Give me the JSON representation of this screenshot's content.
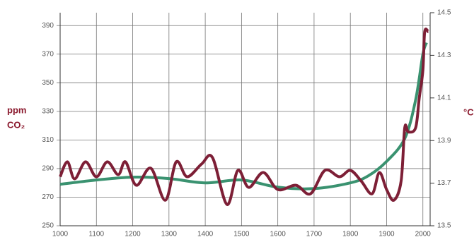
{
  "chart_data": {
    "type": "line",
    "y_label": "ppm",
    "y_label_2": "CO₂",
    "y2_label": "°C",
    "xlim": [
      1000,
      2020
    ],
    "xticks": [
      1000,
      1100,
      1200,
      1300,
      1400,
      1500,
      1600,
      1700,
      1800,
      1900,
      2000
    ],
    "ylim": [
      250,
      399
    ],
    "yticks": [
      250,
      270,
      290,
      310,
      330,
      350,
      370,
      390
    ],
    "y2lim": [
      13.5,
      14.5
    ],
    "y2ticks": [
      13.5,
      13.7,
      13.9,
      14.1,
      14.3,
      14.5
    ],
    "grid": true,
    "series": [
      {
        "color": "#3a9270",
        "x": [
          1000,
          1100,
          1200,
          1300,
          1400,
          1500,
          1600,
          1700,
          1800,
          1850,
          1900,
          1950,
          1980,
          2000,
          2010
        ],
        "values": [
          279,
          282,
          284,
          283,
          280,
          282,
          277,
          276,
          280,
          285,
          295,
          311,
          338,
          370,
          378
        ]
      },
      {
        "color": "#7d1f36",
        "axis": "y2",
        "x": [
          1000,
          1020,
          1040,
          1070,
          1100,
          1130,
          1160,
          1180,
          1210,
          1250,
          1290,
          1320,
          1350,
          1390,
          1420,
          1460,
          1490,
          1520,
          1560,
          1600,
          1650,
          1690,
          1730,
          1770,
          1800,
          1830,
          1860,
          1880,
          1900,
          1920,
          1940,
          1950,
          1960,
          1980,
          1990,
          2000,
          2005,
          2015
        ],
        "values": [
          13.73,
          13.8,
          13.72,
          13.8,
          13.73,
          13.8,
          13.74,
          13.8,
          13.69,
          13.77,
          13.62,
          13.8,
          13.73,
          13.79,
          13.82,
          13.6,
          13.76,
          13.68,
          13.75,
          13.67,
          13.69,
          13.65,
          13.76,
          13.73,
          13.76,
          13.71,
          13.65,
          13.75,
          13.67,
          13.62,
          13.71,
          13.96,
          13.94,
          13.96,
          14.1,
          14.23,
          14.41,
          14.41
        ]
      }
    ]
  }
}
